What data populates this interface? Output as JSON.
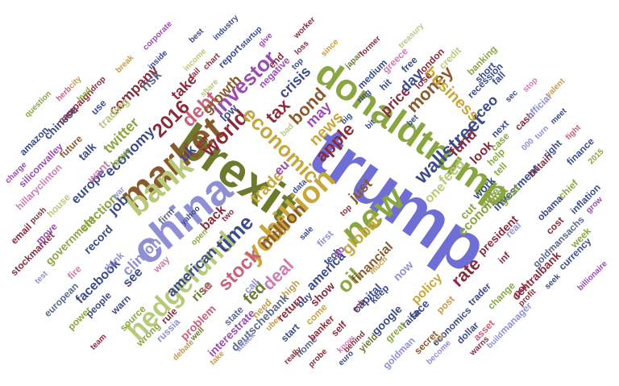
{
  "palette": {
    "lavender": "#8f8fd6",
    "indigo": "#6e6ed4",
    "sage": "#b9c97a",
    "olive": "#8aa640",
    "olivedark": "#6b7a2c",
    "brown": "#8a5a2c",
    "tan": "#c39a4a",
    "gold": "#c9a63a",
    "maroon": "#8a2a3a",
    "rose": "#c9607a",
    "pink": "#d07ab0",
    "violet": "#9a4ab0",
    "navy": "#3a4a8a",
    "slate": "#5a6a8a",
    "lightsage": "#d6d9a6"
  },
  "words": [
    {
      "t": "trump",
      "c": "indigo"
    },
    {
      "t": "donaldtrump",
      "c": "olive"
    },
    {
      "t": "brexit",
      "c": "olivedark"
    },
    {
      "t": "china",
      "c": "lavender"
    },
    {
      "t": "market",
      "c": "brown"
    },
    {
      "t": "bank",
      "c": "sage"
    },
    {
      "t": "hedgefund",
      "c": "sage"
    },
    {
      "t": "new",
      "c": "olive"
    },
    {
      "t": "billion",
      "c": "gold"
    },
    {
      "t": "year",
      "c": "gold"
    },
    {
      "t": "million",
      "c": "brown"
    },
    {
      "t": "world",
      "c": "maroon"
    },
    {
      "t": "time",
      "c": "navy"
    },
    {
      "t": "stock",
      "c": "rose"
    },
    {
      "t": "fed",
      "c": "olivedark"
    },
    {
      "t": "economic",
      "c": "gold"
    },
    {
      "t": "investor",
      "c": "violet"
    },
    {
      "t": "2016",
      "c": "maroon"
    },
    {
      "t": "debt",
      "c": "rose"
    },
    {
      "t": "tax",
      "c": "maroon"
    },
    {
      "t": "bond",
      "c": "brown"
    },
    {
      "t": "money",
      "c": "brown"
    },
    {
      "t": "apple",
      "c": "maroon"
    },
    {
      "t": "oil",
      "c": "olive"
    },
    {
      "t": "rate",
      "c": "maroon"
    },
    {
      "t": "deal",
      "c": "pink"
    },
    {
      "t": "wallstreet",
      "c": "navy"
    },
    {
      "t": "business",
      "c": "gold"
    },
    {
      "t": "economy",
      "c": "navy"
    },
    {
      "t": "job",
      "c": "navy"
    },
    {
      "t": "take",
      "c": "maroon"
    },
    {
      "t": "company",
      "c": "maroon"
    },
    {
      "t": "risk",
      "c": "slate"
    },
    {
      "t": "uk",
      "c": "navy"
    },
    {
      "t": "twitter",
      "c": "olive"
    },
    {
      "t": "crisis",
      "c": "navy"
    },
    {
      "t": "growth",
      "c": "brown"
    },
    {
      "t": "may",
      "c": "violet"
    },
    {
      "t": "news",
      "c": "gold"
    },
    {
      "t": "price",
      "c": "maroon"
    },
    {
      "t": "day",
      "c": "navy"
    },
    {
      "t": "fund",
      "c": "maroon"
    },
    {
      "t": "ceo",
      "c": "navy"
    },
    {
      "t": "feed",
      "c": "sage"
    },
    {
      "t": "one",
      "c": "sage"
    },
    {
      "t": "look",
      "c": "maroon"
    },
    {
      "t": "global",
      "c": "gold"
    },
    {
      "t": "just",
      "c": "brown"
    },
    {
      "t": "trade",
      "c": "gold"
    },
    {
      "t": "eu",
      "c": "violet"
    },
    {
      "t": "clinton",
      "c": "lavender"
    },
    {
      "t": "american",
      "c": "navy"
    },
    {
      "t": "rise",
      "c": "olivedark"
    },
    {
      "t": "back",
      "c": "maroon"
    },
    {
      "t": "see",
      "c": "navy"
    },
    {
      "t": "facebook",
      "c": "navy"
    },
    {
      "t": "europe",
      "c": "navy"
    },
    {
      "t": "election",
      "c": "olive"
    },
    {
      "t": "record",
      "c": "navy"
    },
    {
      "t": "government",
      "c": "olive"
    },
    {
      "t": "financial",
      "c": "brown"
    },
    {
      "t": "policy",
      "c": "gold"
    },
    {
      "t": "america",
      "c": "navy"
    },
    {
      "t": "capital",
      "c": "navy"
    },
    {
      "t": "google",
      "c": "navy"
    },
    {
      "t": "economist",
      "c": "olive"
    },
    {
      "t": "president",
      "c": "maroon"
    },
    {
      "t": "work",
      "c": "navy"
    },
    {
      "t": "investment",
      "c": "navy"
    },
    {
      "t": "centralbank",
      "c": "maroon"
    },
    {
      "t": "deutschebank",
      "c": "slate"
    },
    {
      "t": "interestrate",
      "c": "violet"
    },
    {
      "t": "problem",
      "c": "rose"
    },
    {
      "t": "return",
      "c": "maroon"
    },
    {
      "t": "show",
      "c": "maroon"
    },
    {
      "t": "buy",
      "c": "navy"
    },
    {
      "t": "tech",
      "c": "navy"
    },
    {
      "t": "first",
      "c": "lavender"
    },
    {
      "t": "go",
      "c": "violet"
    },
    {
      "t": "face",
      "c": "navy"
    },
    {
      "t": "now",
      "c": "lavender"
    },
    {
      "t": "raise",
      "c": "navy"
    },
    {
      "t": "post",
      "c": "tan"
    },
    {
      "t": "trader",
      "c": "navy"
    },
    {
      "t": "manager",
      "c": "lavender"
    },
    {
      "t": "change",
      "c": "olive"
    },
    {
      "t": "pol",
      "c": "maroon"
    },
    {
      "t": "cost",
      "c": "maroon"
    },
    {
      "t": "inflation",
      "c": "navy"
    },
    {
      "t": "chief",
      "c": "olive"
    },
    {
      "t": "obama",
      "c": "navy"
    },
    {
      "t": "goldmansachs",
      "c": "slate"
    },
    {
      "t": "week",
      "c": "olive"
    },
    {
      "t": "currency",
      "c": "navy"
    },
    {
      "t": "billionaire",
      "c": "violet"
    },
    {
      "t": "finance",
      "c": "navy"
    },
    {
      "t": "britain",
      "c": "maroon"
    },
    {
      "t": "right",
      "c": "navy"
    },
    {
      "t": "cash",
      "c": "maroon"
    },
    {
      "t": "official",
      "c": "lavender"
    },
    {
      "t": "recession",
      "c": "navy"
    },
    {
      "t": "sec",
      "c": "navy"
    },
    {
      "t": "next",
      "c": "navy"
    },
    {
      "t": "cut",
      "c": "olive"
    },
    {
      "t": "vote",
      "c": "olive"
    },
    {
      "t": "dollar",
      "c": "navy"
    },
    {
      "t": "asset",
      "c": "rose"
    },
    {
      "t": "secret",
      "c": "brown"
    },
    {
      "t": "economics",
      "c": "navy"
    },
    {
      "t": "yield",
      "c": "olivedark"
    },
    {
      "t": "goldman",
      "c": "lavender"
    },
    {
      "t": "great",
      "c": "olive"
    },
    {
      "t": "keep",
      "c": "navy"
    },
    {
      "t": "medium",
      "c": "navy"
    },
    {
      "t": "hit",
      "c": "navy"
    },
    {
      "t": "free",
      "c": "navy"
    },
    {
      "t": "lose",
      "c": "maroon"
    },
    {
      "t": "greece",
      "c": "pink"
    },
    {
      "t": "london",
      "c": "maroon"
    },
    {
      "t": "credit",
      "c": "sage"
    },
    {
      "t": "banking",
      "c": "olive"
    },
    {
      "t": "short",
      "c": "navy"
    },
    {
      "t": "fall",
      "c": "navy"
    },
    {
      "t": "talk",
      "c": "navy"
    },
    {
      "t": "want",
      "c": "pink"
    },
    {
      "t": "trading",
      "c": "sage"
    },
    {
      "t": "amazon",
      "c": "navy"
    },
    {
      "t": "chinese",
      "c": "navy"
    },
    {
      "t": "future",
      "c": "brown"
    },
    {
      "t": "siliconvalley",
      "c": "violet"
    },
    {
      "t": "hillaryclinton",
      "c": "pink"
    },
    {
      "t": "house",
      "c": "sage"
    },
    {
      "t": "email",
      "c": "maroon"
    },
    {
      "t": "stockmarket",
      "c": "maroon"
    },
    {
      "t": "charge",
      "c": "violet"
    },
    {
      "t": "test",
      "c": "lavender"
    },
    {
      "t": "european",
      "c": "slate"
    },
    {
      "t": "power",
      "c": "olive"
    },
    {
      "t": "team",
      "c": "maroon"
    },
    {
      "t": "source",
      "c": "olive"
    },
    {
      "t": "wrong",
      "c": "olive"
    },
    {
      "t": "russia",
      "c": "lavender"
    },
    {
      "t": "debate",
      "c": "tan"
    },
    {
      "t": "well",
      "c": "olivedark"
    },
    {
      "t": "take",
      "c": "tan"
    },
    {
      "t": "attack",
      "c": "lavender"
    },
    {
      "t": "state",
      "c": "slate"
    },
    {
      "t": "start",
      "c": "navy"
    },
    {
      "t": "really",
      "c": "maroon"
    },
    {
      "t": "probe",
      "c": "maroon"
    },
    {
      "t": "home",
      "c": "slate"
    },
    {
      "t": "banker",
      "c": "maroon"
    },
    {
      "t": "euro",
      "c": "navy"
    },
    {
      "t": "behind",
      "c": "maroon"
    },
    {
      "t": "become",
      "c": "lavender"
    },
    {
      "t": "car",
      "c": "tan"
    },
    {
      "t": "warns",
      "c": "maroon"
    },
    {
      "t": "build",
      "c": "lavender"
    },
    {
      "t": "profit",
      "c": "maroon"
    },
    {
      "t": "seek",
      "c": "navy"
    },
    {
      "t": "grow",
      "c": "violet"
    },
    {
      "t": "2015",
      "c": "olive"
    },
    {
      "t": "fight",
      "c": "rose"
    },
    {
      "t": "meet",
      "c": "navy"
    },
    {
      "t": "turn",
      "c": "lavender"
    },
    {
      "t": "valent",
      "c": "tan"
    },
    {
      "t": "stop",
      "c": "pink"
    },
    {
      "t": "help",
      "c": "olive"
    },
    {
      "t": "good",
      "c": "olive"
    },
    {
      "t": "tell",
      "c": "olive"
    },
    {
      "t": "case",
      "c": "olive"
    },
    {
      "t": "real",
      "c": "lavender"
    },
    {
      "t": "inf",
      "c": "maroon"
    },
    {
      "t": "000",
      "c": "lavender"
    },
    {
      "t": "think",
      "c": "lavender"
    },
    {
      "t": "people",
      "c": "navy"
    },
    {
      "t": "way",
      "c": "pink"
    },
    {
      "t": "fire",
      "c": "pink"
    },
    {
      "t": "rule",
      "c": "maroon"
    },
    {
      "t": "warn",
      "c": "navy"
    },
    {
      "t": "firm",
      "c": "slate"
    },
    {
      "t": "yahoo",
      "c": "navy"
    },
    {
      "t": "open",
      "c": "olive"
    },
    {
      "t": "kill",
      "c": "rose"
    },
    {
      "t": "two",
      "c": "maroon"
    },
    {
      "t": "call",
      "c": "lavender"
    },
    {
      "t": "need",
      "c": "tan"
    },
    {
      "t": "uber",
      "c": "tan"
    },
    {
      "t": "come",
      "c": "gold"
    },
    {
      "t": "self",
      "c": "maroon"
    },
    {
      "t": "know",
      "c": "pink"
    },
    {
      "t": "high",
      "c": "tan"
    },
    {
      "t": "sale",
      "c": "navy"
    },
    {
      "t": "top",
      "c": "maroon"
    },
    {
      "t": "ecb",
      "c": "maroon"
    },
    {
      "t": "data",
      "c": "navy"
    },
    {
      "t": "much",
      "c": "tan"
    },
    {
      "t": "war",
      "c": "lavender"
    },
    {
      "t": "push",
      "c": "maroon"
    },
    {
      "t": "move",
      "c": "violet"
    },
    {
      "t": "leave",
      "c": "olive"
    },
    {
      "t": "use",
      "c": "navy"
    },
    {
      "t": "campaign",
      "c": "maroon"
    },
    {
      "t": "drop",
      "c": "maroon"
    },
    {
      "t": "lead",
      "c": "olive"
    },
    {
      "t": "herb",
      "c": "rose"
    },
    {
      "t": "city",
      "c": "tan"
    },
    {
      "t": "question",
      "c": "olive"
    },
    {
      "t": "break",
      "c": "tan"
    },
    {
      "t": "inside",
      "c": "navy"
    },
    {
      "t": "income",
      "c": "sage"
    },
    {
      "t": "corporate",
      "c": "violet"
    },
    {
      "t": "best",
      "c": "navy"
    },
    {
      "t": "industry",
      "c": "navy"
    },
    {
      "t": "fail",
      "c": "maroon"
    },
    {
      "t": "chart",
      "c": "maroon"
    },
    {
      "t": "report",
      "c": "navy"
    },
    {
      "t": "give",
      "c": "violet"
    },
    {
      "t": "startup",
      "c": "navy"
    },
    {
      "t": "worker",
      "c": "maroon"
    },
    {
      "t": "loss",
      "c": "maroon"
    },
    {
      "t": "since",
      "c": "tan"
    },
    {
      "t": "japan",
      "c": "olivedark"
    },
    {
      "t": "former",
      "c": "maroon"
    },
    {
      "t": "treasury",
      "c": "sage"
    },
    {
      "t": "share",
      "c": "sage"
    },
    {
      "t": "bad",
      "c": "sage"
    },
    {
      "t": "still",
      "c": "maroon"
    },
    {
      "t": "low",
      "c": "navy"
    },
    {
      "t": "end",
      "c": "maroon"
    },
    {
      "t": "negative",
      "c": "violet"
    },
    {
      "t": "top",
      "c": "navy"
    },
    {
      "t": "ring",
      "c": "navy"
    },
    {
      "t": "bit",
      "c": "navy"
    },
    {
      "t": "big",
      "c": "navy"
    },
    {
      "t": "bet",
      "c": "navy"
    }
  ]
}
